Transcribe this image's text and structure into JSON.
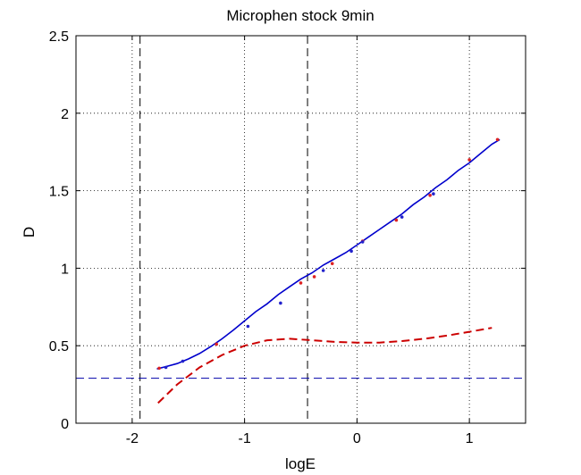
{
  "chart_data": {
    "type": "line",
    "title": "Microphen stock 9min",
    "xlabel": "logE",
    "ylabel": "D",
    "xlim": [
      -2.5,
      1.5
    ],
    "ylim": [
      0,
      2.5
    ],
    "xticks": [
      -2,
      -1,
      0,
      1
    ],
    "xtick_labels": [
      "-2",
      "-1",
      "0",
      "1"
    ],
    "yticks": [
      0,
      0.5,
      1,
      1.5,
      2,
      2.5
    ],
    "ytick_labels": [
      "0",
      "0.5",
      "1",
      "1.5",
      "2",
      "2.5"
    ],
    "grid": true,
    "series": [
      {
        "style": "solid",
        "color": "#0000cc",
        "x": [
          -1.78,
          -1.7,
          -1.6,
          -1.5,
          -1.4,
          -1.3,
          -1.2,
          -1.1,
          -1.0,
          -0.9,
          -0.8,
          -0.7,
          -0.6,
          -0.5,
          -0.4,
          -0.3,
          -0.2,
          -0.1,
          0.0,
          0.1,
          0.2,
          0.3,
          0.4,
          0.5,
          0.6,
          0.7,
          0.8,
          0.9,
          1.0,
          1.1,
          1.2,
          1.27
        ],
        "y": [
          0.35,
          0.365,
          0.385,
          0.415,
          0.45,
          0.495,
          0.545,
          0.6,
          0.66,
          0.72,
          0.77,
          0.83,
          0.88,
          0.93,
          0.97,
          1.02,
          1.06,
          1.1,
          1.15,
          1.2,
          1.25,
          1.3,
          1.35,
          1.41,
          1.46,
          1.52,
          1.57,
          1.63,
          1.68,
          1.74,
          1.8,
          1.83
        ]
      },
      {
        "style": "dashed",
        "color": "#cc0000",
        "x": [
          -1.77,
          -1.6,
          -1.4,
          -1.2,
          -1.0,
          -0.8,
          -0.6,
          -0.4,
          -0.2,
          0.0,
          0.2,
          0.4,
          0.6,
          0.8,
          1.0,
          1.2
        ],
        "y": [
          0.13,
          0.25,
          0.36,
          0.44,
          0.5,
          0.535,
          0.545,
          0.535,
          0.525,
          0.52,
          0.52,
          0.53,
          0.545,
          0.565,
          0.59,
          0.615
        ]
      }
    ],
    "markers": {
      "color_red": "#dd2222",
      "color_blue": "#2222cc",
      "red_x": [
        -1.76,
        -1.25,
        -0.5,
        -0.38,
        -0.22,
        0.05,
        0.35,
        0.65,
        1.0,
        1.25
      ],
      "red_y": [
        0.355,
        0.51,
        0.905,
        0.945,
        1.03,
        1.175,
        1.31,
        1.47,
        1.7,
        1.83
      ],
      "blue_x": [
        -1.7,
        -1.55,
        -0.97,
        -0.68,
        -0.3,
        -0.05,
        0.05,
        0.4,
        0.68
      ],
      "blue_y": [
        0.36,
        0.4,
        0.625,
        0.775,
        0.985,
        1.11,
        1.17,
        1.33,
        1.48
      ]
    },
    "reference_lines": {
      "vertical_x": [
        -1.93,
        -0.44
      ],
      "horizontal_y": [
        0.29
      ]
    }
  }
}
